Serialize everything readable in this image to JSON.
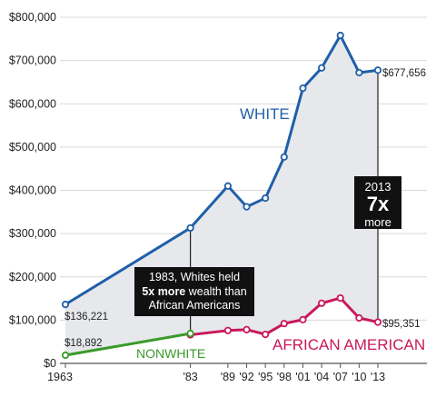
{
  "chart_data": {
    "type": "line",
    "ylim": [
      0,
      800000
    ],
    "y_ticks": [
      "$800,000",
      "$700,000",
      "$600,000",
      "$500,000",
      "$400,000",
      "$300,000",
      "$200,000",
      "$100,000",
      "$0"
    ],
    "y_tick_values": [
      800000,
      700000,
      600000,
      500000,
      400000,
      300000,
      200000,
      100000,
      0
    ],
    "x_ticks": [
      "1963",
      "'83",
      "'89",
      "'92",
      "'95",
      "'98",
      "'01",
      "'04",
      "'07",
      "'10",
      "'13"
    ],
    "x_tick_values": [
      1963,
      1983,
      1989,
      1992,
      1995,
      1998,
      2001,
      2004,
      2007,
      2010,
      2013
    ],
    "series": [
      {
        "name": "WHITE",
        "color": "#1f5fa8",
        "x": [
          1963,
          1983,
          1989,
          1992,
          1995,
          1998,
          2001,
          2004,
          2007,
          2010,
          2013
        ],
        "values": [
          136221,
          313000,
          410000,
          362000,
          382000,
          477000,
          636000,
          683000,
          758000,
          672000,
          677656
        ]
      },
      {
        "name": "AFRICAN AMERICAN",
        "color": "#c8185a",
        "x": [
          1983,
          1989,
          1992,
          1995,
          1998,
          2001,
          2004,
          2007,
          2010,
          2013
        ],
        "values": [
          66000,
          76000,
          78000,
          67000,
          92000,
          101000,
          139000,
          151000,
          105000,
          95351
        ]
      },
      {
        "name": "NONWHITE",
        "color": "#3a9a2a",
        "x": [
          1963,
          1983
        ],
        "values": [
          18892,
          69000
        ]
      }
    ],
    "data_labels": {
      "white_start": "$136,221",
      "white_end": "$677,656",
      "nonwhite_start": "$18,892",
      "aa_end": "$95,351"
    },
    "annotations": {
      "c1983_line1": "1983, Whites held",
      "c1983_bold": "5x more",
      "c1983_line2_rest": " wealth than",
      "c1983_line3": "African Americans",
      "c2013_year": "2013",
      "c2013_big": "7x",
      "c2013_more": "more"
    },
    "grid": true,
    "fill_between": "#e6e8ec"
  }
}
